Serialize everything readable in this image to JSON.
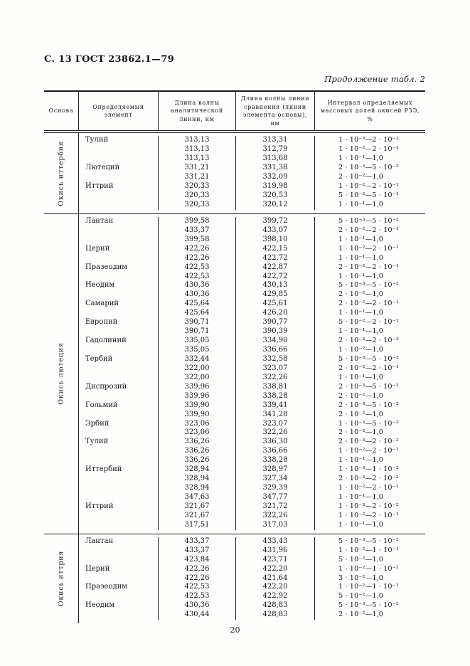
{
  "page": {
    "header": "С. 13 ГОСТ 23862.1—79",
    "table_caption": "Продолжение табл. 2",
    "page_number": "20"
  },
  "table": {
    "columns": [
      "Основа",
      "Определяемый элемент",
      "Длина волны аналитической линии, нм",
      "Длина волны линии сравнения (линии элемента-основы), нм",
      "Интервал определяемых массовых долей окисей РЗЭ, %"
    ],
    "groups": [
      {
        "base": "Окись иттербия",
        "rows": [
          {
            "element": "Тулий",
            "analytical": "313,13",
            "comparison": "313,31",
            "interval": "1 · 10⁻³—2 · 10⁻²"
          },
          {
            "element": "",
            "analytical": "313,13",
            "comparison": "312,79",
            "interval": "1 · 10⁻²—2 · 10⁻¹"
          },
          {
            "element": "",
            "analytical": "313,13",
            "comparison": "313,68",
            "interval": "1 · 10⁻¹—1,0"
          },
          {
            "element": "Лютеций",
            "analytical": "331,21",
            "comparison": "331,38",
            "interval": "2 · 10⁻³—5 · 10⁻²"
          },
          {
            "element": "",
            "analytical": "331,21",
            "comparison": "332,09",
            "interval": "2 · 10⁻²—1,0"
          },
          {
            "element": "Иттрий",
            "analytical": "320,33",
            "comparison": "319,98",
            "interval": "1 · 10⁻²—2 · 10⁻¹"
          },
          {
            "element": "",
            "analytical": "320,33",
            "comparison": "320,53",
            "interval": "5 · 10⁻²—5 · 10⁻¹"
          },
          {
            "element": "",
            "analytical": "320,33",
            "comparison": "320,12",
            "interval": "1 · 10⁻¹—1,0"
          }
        ]
      },
      {
        "base": "Окись лютеция",
        "rows": [
          {
            "element": "Лантан",
            "analytical": "399,58",
            "comparison": "399,72",
            "interval": "5 · 10⁻³—5 · 10⁻²"
          },
          {
            "element": "",
            "analytical": "433,37",
            "comparison": "433,07",
            "interval": "2 · 10⁻²—2 · 10⁻¹"
          },
          {
            "element": "",
            "analytical": "399,58",
            "comparison": "398,10",
            "interval": "1 · 10⁻¹—1,0"
          },
          {
            "element": "Церий",
            "analytical": "422,26",
            "comparison": "422,15",
            "interval": "1 · 10⁻²—2 · 10⁻¹"
          },
          {
            "element": "",
            "analytical": "422,26",
            "comparison": "422,72",
            "interval": "1 · 10⁻¹—1,0"
          },
          {
            "element": "Празеодим",
            "analytical": "422,53",
            "comparison": "422,87",
            "interval": "2 · 10⁻²—2 · 10⁻¹"
          },
          {
            "element": "",
            "analytical": "422,53",
            "comparison": "422,72",
            "interval": "1 · 10⁻¹—1,0"
          },
          {
            "element": "Неодим",
            "analytical": "430,36",
            "comparison": "430,13",
            "interval": "5 · 10⁻³—5 · 10⁻²"
          },
          {
            "element": "",
            "analytical": "430,36",
            "comparison": "429,85",
            "interval": "2 · 10⁻²—1,0"
          },
          {
            "element": "Самарий",
            "analytical": "425,64",
            "comparison": "425,61",
            "interval": "2 · 10⁻²—2 · 10⁻¹"
          },
          {
            "element": "",
            "analytical": "425,64",
            "comparison": "426,20",
            "interval": "1 · 10⁻¹—1,0"
          },
          {
            "element": "Европий",
            "analytical": "390,71",
            "comparison": "390,77",
            "interval": "5 · 10⁻²—2 · 10⁻¹"
          },
          {
            "element": "",
            "analytical": "390,71",
            "comparison": "390,39",
            "interval": "1 · 10⁻¹—1,0"
          },
          {
            "element": "Гадолиний",
            "analytical": "335,05",
            "comparison": "334,90",
            "interval": "2 · 10⁻³—2 · 10⁻²"
          },
          {
            "element": "",
            "analytical": "335,05",
            "comparison": "336,66",
            "interval": "1 · 10⁻²—1,0"
          },
          {
            "element": "Тербий",
            "analytical": "332,44",
            "comparison": "332,58",
            "interval": "5 · 10⁻³—5 · 10⁻²"
          },
          {
            "element": "",
            "analytical": "322,00",
            "comparison": "323,07",
            "interval": "2 · 10⁻²—2 · 10⁻¹"
          },
          {
            "element": "",
            "analytical": "322,00",
            "comparison": "322,26",
            "interval": "1 · 10⁻¹—1,0"
          },
          {
            "element": "Диспрозий",
            "analytical": "339,96",
            "comparison": "338,81",
            "interval": "2 · 10⁻³—5 · 10⁻²"
          },
          {
            "element": "",
            "analytical": "339,96",
            "comparison": "338,28",
            "interval": "2 · 10⁻²—1,0"
          },
          {
            "element": "Гольмий",
            "analytical": "339,90",
            "comparison": "339,41",
            "interval": "2 · 10⁻³—5 · 10⁻²"
          },
          {
            "element": "",
            "analytical": "339,90",
            "comparison": "341,28",
            "interval": "2 · 10⁻²—1,0"
          },
          {
            "element": "Эрбий",
            "analytical": "323,06",
            "comparison": "323,07",
            "interval": "1 · 10⁻³—5 · 10⁻²"
          },
          {
            "element": "",
            "analytical": "323,06",
            "comparison": "322,26",
            "interval": "2 · 10⁻²—1,0"
          },
          {
            "element": "Тулий",
            "analytical": "336,26",
            "comparison": "336,30",
            "interval": "2 · 10⁻³—2 · 10⁻²"
          },
          {
            "element": "",
            "analytical": "336,26",
            "comparison": "336,66",
            "interval": "1 · 10⁻²—2 · 10⁻¹"
          },
          {
            "element": "",
            "analytical": "336,26",
            "comparison": "338,28",
            "interval": "1 · 10⁻¹—1,0"
          },
          {
            "element": "Иттербий",
            "analytical": "328,94",
            "comparison": "328,97",
            "interval": "1 · 10⁻³—1 · 10⁻²"
          },
          {
            "element": "",
            "analytical": "328,94",
            "comparison": "327,34",
            "interval": "2 · 10⁻³—2 · 10⁻²"
          },
          {
            "element": "",
            "analytical": "328,94",
            "comparison": "329,39",
            "interval": "1 · 10⁻²—2 · 10⁻¹"
          },
          {
            "element": "",
            "analytical": "347,63",
            "comparison": "347,77",
            "interval": "1 · 10⁻¹—1,0"
          },
          {
            "element": "Иттрий",
            "analytical": "321,67",
            "comparison": "321,72",
            "interval": "1 · 10⁻³—2 · 10⁻²"
          },
          {
            "element": "",
            "analytical": "321,67",
            "comparison": "322,26",
            "interval": "1 · 10⁻²—2 · 10⁻¹"
          },
          {
            "element": "",
            "analytical": "317,51",
            "comparison": "317,03",
            "interval": "1 · 10⁻¹—1,0"
          }
        ]
      },
      {
        "base": "Окись иттрия",
        "rows": [
          {
            "element": "Лантан",
            "analytical": "433,37",
            "comparison": "433,43",
            "interval": "5 · 10⁻³—5 · 10⁻²"
          },
          {
            "element": "",
            "analytical": "433,37",
            "comparison": "431,96",
            "interval": "1 · 10⁻²—1 · 10⁻¹"
          },
          {
            "element": "",
            "analytical": "423,84",
            "comparison": "423,71",
            "interval": "5 · 10⁻²—1,0"
          },
          {
            "element": "Церий",
            "analytical": "422,26",
            "comparison": "422,20",
            "interval": "1 · 10⁻²—1 · 10⁻¹"
          },
          {
            "element": "",
            "analytical": "422,26",
            "comparison": "421,64",
            "interval": "3 · 10⁻²—1,0"
          },
          {
            "element": "Празеодим",
            "analytical": "422,53",
            "comparison": "422,20",
            "interval": "1 · 10⁻²—1 · 10⁻¹"
          },
          {
            "element": "",
            "analytical": "422,53",
            "comparison": "422,92",
            "interval": "5 · 10⁻²—1,0"
          },
          {
            "element": "Неодим",
            "analytical": "430,36",
            "comparison": "428,83",
            "interval": "5 · 10⁻³—5 · 10⁻²"
          },
          {
            "element": "",
            "analytical": "430,44",
            "comparison": "428,83",
            "interval": "2 · 10⁻²—1,0"
          }
        ]
      }
    ]
  }
}
